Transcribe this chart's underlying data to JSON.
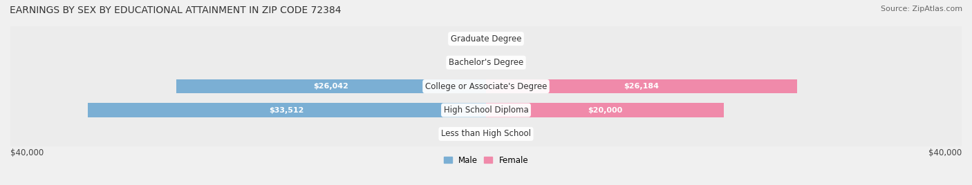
{
  "title": "EARNINGS BY SEX BY EDUCATIONAL ATTAINMENT IN ZIP CODE 72384",
  "source": "Source: ZipAtlas.com",
  "categories": [
    "Less than High School",
    "High School Diploma",
    "College or Associate's Degree",
    "Bachelor's Degree",
    "Graduate Degree"
  ],
  "male_values": [
    0,
    33512,
    26042,
    0,
    0
  ],
  "female_values": [
    0,
    20000,
    26184,
    0,
    0
  ],
  "male_color": "#7bafd4",
  "female_color": "#f08aaa",
  "male_label": "Male",
  "female_label": "Female",
  "x_max": 40000,
  "x_axis_label_left": "$40,000",
  "x_axis_label_right": "$40,000",
  "background_color": "#f0f0f0",
  "bar_bg_color": "#e8e8e8",
  "title_fontsize": 10,
  "source_fontsize": 8,
  "label_fontsize": 8.5,
  "value_fontsize": 8,
  "bar_height": 0.7,
  "row_colors": [
    "#f5f5f5",
    "#f0f0f0"
  ]
}
